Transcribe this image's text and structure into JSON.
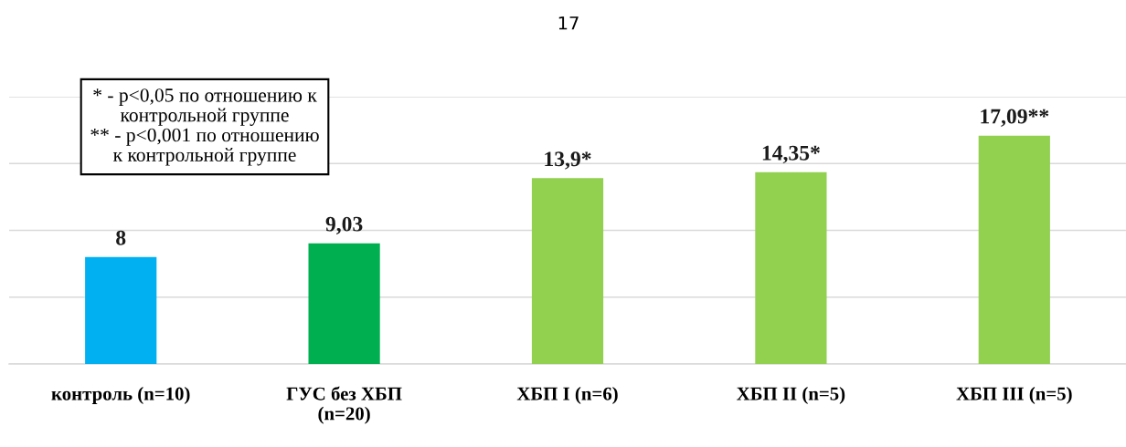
{
  "chart_data": {
    "type": "bar",
    "categories": [
      "контроль (n=10)",
      "ГУС без ХБП\n(n=20)",
      "ХБП I (n=6)",
      "ХБП II (n=5)",
      "ХБП III (n=5)"
    ],
    "values": [
      8,
      9.03,
      13.9,
      14.35,
      17.09
    ],
    "colors": [
      "#00b0f0",
      "#00b050",
      "#92d050",
      "#92d050",
      "#92d050"
    ],
    "value_labels": [
      "8",
      "9,03",
      "13,9*",
      "14,35*",
      "17,09**"
    ],
    "ylim": [
      0,
      20
    ],
    "yticks": [
      {
        "value": 0,
        "label": null
      },
      {
        "value": 5,
        "label": null
      },
      {
        "value": 10,
        "label": null
      },
      {
        "value": 15,
        "label": null
      },
      {
        "value": 20,
        "label": null
      }
    ],
    "grid": "y",
    "tick_labels": "x",
    "legend": false,
    "annotations": [
      "17",
      "* - p<0,05 по отношению к\nконтрольной группе\n** - p<0,001 по отношению\nк контрольной группе"
    ]
  }
}
